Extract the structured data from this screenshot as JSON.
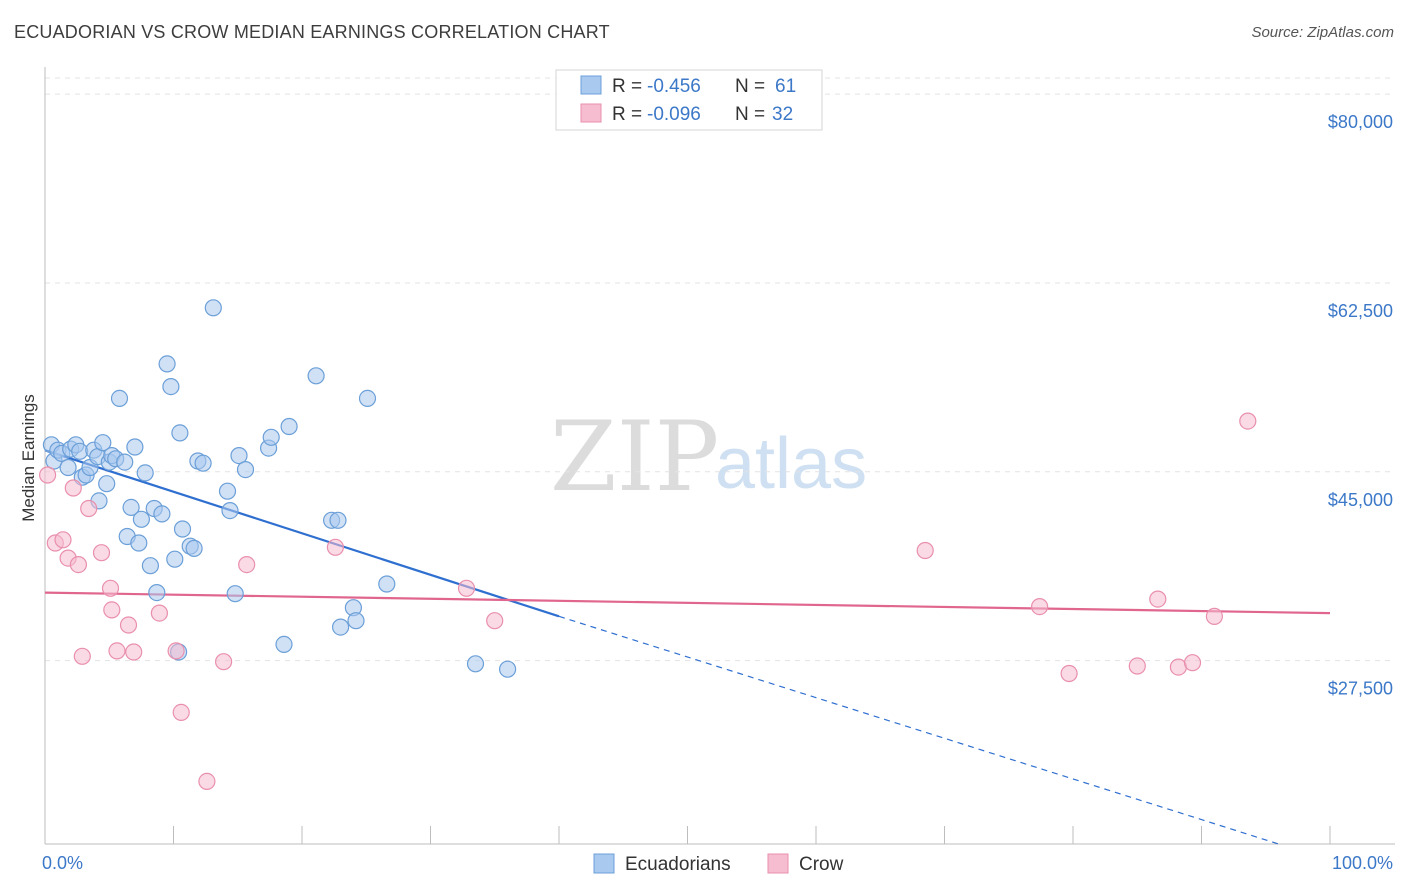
{
  "title": "ECUADORIAN VS CROW MEDIAN EARNINGS CORRELATION CHART",
  "source": "Source: ZipAtlas.com",
  "watermark": {
    "zip": "ZIP",
    "atlas": "atlas"
  },
  "colors": {
    "blue_fill": "#a9c9ee",
    "blue_stroke": "#6b9fd8",
    "blue_line": "#2f6fd0",
    "pink_fill": "#f6bcd0",
    "pink_stroke": "#e98fac",
    "pink_line": "#e0668e",
    "axis_text": "#3c78c8",
    "grid": "#e3e3e3"
  },
  "legend": {
    "rows": [
      {
        "r_label": "R = ",
        "r_value": "-0.456",
        "n_label": "N = ",
        "n_value": "61"
      },
      {
        "r_label": "R = ",
        "r_value": "-0.096",
        "n_label": "N = ",
        "n_value": "32"
      }
    ]
  },
  "chart_data": {
    "type": "scatter",
    "title": "ECUADORIAN VS CROW MEDIAN EARNINGS CORRELATION CHART",
    "xlabel": "",
    "ylabel": "Median Earnings",
    "x_tick_labels": [
      "0.0%",
      "100.0%"
    ],
    "y_ticks": [
      27500,
      45000,
      62500,
      80000
    ],
    "y_tick_labels": [
      "$27,500",
      "$45,000",
      "$62,500",
      "$80,000"
    ],
    "xlim": [
      0,
      100
    ],
    "ylim": [
      10500,
      81500
    ],
    "grid": true,
    "series": [
      {
        "name": "Ecuadorians",
        "color": "blue",
        "r": -0.456,
        "n": 61,
        "trend": {
          "x0": 0,
          "y0": 47000,
          "x1": 40,
          "y1": 31600,
          "dash_to_x": 96,
          "dash_to_y": 10500
        },
        "points": [
          [
            0.5,
            47.5
          ],
          [
            0.7,
            46.0
          ],
          [
            1.0,
            47.0
          ],
          [
            1.3,
            46.7
          ],
          [
            1.8,
            45.4
          ],
          [
            2.0,
            47.1
          ],
          [
            2.4,
            47.5
          ],
          [
            2.7,
            46.9
          ],
          [
            2.9,
            44.5
          ],
          [
            3.2,
            44.7
          ],
          [
            3.5,
            45.4
          ],
          [
            3.8,
            47.0
          ],
          [
            4.1,
            46.4
          ],
          [
            4.2,
            42.3
          ],
          [
            4.5,
            47.7
          ],
          [
            4.8,
            43.9
          ],
          [
            5.0,
            45.9
          ],
          [
            5.2,
            46.5
          ],
          [
            5.5,
            46.2
          ],
          [
            5.8,
            51.8
          ],
          [
            6.2,
            45.9
          ],
          [
            6.4,
            39.0
          ],
          [
            6.7,
            41.7
          ],
          [
            7.0,
            47.3
          ],
          [
            7.3,
            38.4
          ],
          [
            7.5,
            40.6
          ],
          [
            7.8,
            44.9
          ],
          [
            8.2,
            36.3
          ],
          [
            8.5,
            41.6
          ],
          [
            8.7,
            33.8
          ],
          [
            9.1,
            41.1
          ],
          [
            9.5,
            55.0
          ],
          [
            9.8,
            52.9
          ],
          [
            10.1,
            36.9
          ],
          [
            10.5,
            48.6
          ],
          [
            10.7,
            39.7
          ],
          [
            11.3,
            38.1
          ],
          [
            11.6,
            37.9
          ],
          [
            11.9,
            46.0
          ],
          [
            12.3,
            45.8
          ],
          [
            13.1,
            60.2
          ],
          [
            14.2,
            43.2
          ],
          [
            14.4,
            41.4
          ],
          [
            14.8,
            33.7
          ],
          [
            15.1,
            46.5
          ],
          [
            15.6,
            45.2
          ],
          [
            17.4,
            47.2
          ],
          [
            17.6,
            48.2
          ],
          [
            18.6,
            29.0
          ],
          [
            19.0,
            49.2
          ],
          [
            21.1,
            53.9
          ],
          [
            22.3,
            40.5
          ],
          [
            22.8,
            40.5
          ],
          [
            23.0,
            30.6
          ],
          [
            24.0,
            32.4
          ],
          [
            24.2,
            31.2
          ],
          [
            25.1,
            51.8
          ],
          [
            26.6,
            34.6
          ],
          [
            33.5,
            27.2
          ],
          [
            36.0,
            26.7
          ],
          [
            10.4,
            28.3
          ]
        ]
      },
      {
        "name": "Crow",
        "color": "pink",
        "r": -0.096,
        "n": 32,
        "trend": {
          "x0": 0,
          "y0": 33800,
          "x1": 100,
          "y1": 31900
        },
        "points": [
          [
            0.2,
            44.7
          ],
          [
            0.8,
            38.4
          ],
          [
            1.4,
            38.7
          ],
          [
            1.8,
            37.0
          ],
          [
            2.2,
            43.5
          ],
          [
            2.6,
            36.4
          ],
          [
            2.9,
            27.9
          ],
          [
            3.4,
            41.6
          ],
          [
            4.4,
            37.5
          ],
          [
            5.1,
            34.2
          ],
          [
            5.2,
            32.2
          ],
          [
            5.6,
            28.4
          ],
          [
            6.5,
            30.8
          ],
          [
            6.9,
            28.3
          ],
          [
            8.9,
            31.9
          ],
          [
            10.2,
            28.4
          ],
          [
            10.6,
            22.7
          ],
          [
            12.6,
            16.3
          ],
          [
            13.9,
            27.4
          ],
          [
            15.7,
            36.4
          ],
          [
            22.6,
            38.0
          ],
          [
            32.8,
            34.2
          ],
          [
            35.0,
            31.2
          ],
          [
            68.5,
            37.7
          ],
          [
            77.4,
            32.5
          ],
          [
            79.7,
            26.3
          ],
          [
            85.0,
            27.0
          ],
          [
            86.6,
            33.2
          ],
          [
            88.2,
            26.9
          ],
          [
            89.3,
            27.3
          ],
          [
            91.0,
            31.6
          ],
          [
            93.6,
            49.7
          ]
        ]
      }
    ]
  }
}
